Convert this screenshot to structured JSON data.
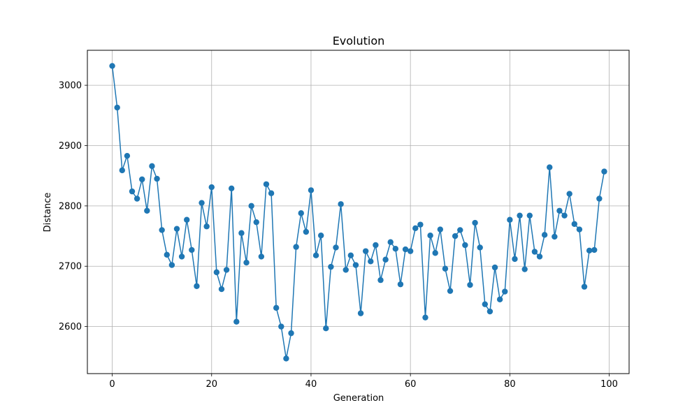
{
  "chart_data": {
    "type": "line",
    "title": "Evolution",
    "xlabel": "Generation",
    "ylabel": "Distance",
    "xlim": [
      -5,
      104
    ],
    "ylim": [
      2522,
      3058
    ],
    "xticks": [
      0,
      20,
      40,
      60,
      80,
      100
    ],
    "yticks": [
      2600,
      2700,
      2800,
      2900,
      3000
    ],
    "grid": true,
    "line_color": "#1f77b4",
    "marker": "circle",
    "series": [
      {
        "x": [
          0,
          1,
          2,
          3,
          4,
          5,
          6,
          7,
          8,
          9,
          10,
          11,
          12,
          13,
          14,
          15,
          16,
          17,
          18,
          19,
          20,
          21,
          22,
          23,
          24,
          25,
          26,
          27,
          28,
          29,
          30,
          31,
          32,
          33,
          34,
          35,
          36,
          37,
          38,
          39,
          40,
          41,
          42,
          43,
          44,
          45,
          46,
          47,
          48,
          49,
          50,
          51,
          52,
          53,
          54,
          55,
          56,
          57,
          58,
          59,
          60,
          61,
          62,
          63,
          64,
          65,
          66,
          67,
          68,
          69,
          70,
          71,
          72,
          73,
          74,
          75,
          76,
          77,
          78,
          79,
          80,
          81,
          82,
          83,
          84,
          85,
          86,
          87,
          88,
          89,
          90,
          91,
          92,
          93,
          94,
          95,
          96,
          97,
          98,
          99
        ],
        "values": [
          3032,
          2963,
          2859,
          2883,
          2824,
          2812,
          2844,
          2792,
          2866,
          2845,
          2760,
          2719,
          2702,
          2762,
          2716,
          2777,
          2727,
          2667,
          2805,
          2766,
          2831,
          2690,
          2662,
          2694,
          2829,
          2608,
          2755,
          2706,
          2800,
          2773,
          2716,
          2836,
          2821,
          2631,
          2600,
          2547,
          2589,
          2732,
          2788,
          2757,
          2826,
          2718,
          2751,
          2597,
          2699,
          2731,
          2803,
          2694,
          2718,
          2702,
          2622,
          2725,
          2708,
          2735,
          2677,
          2711,
          2740,
          2729,
          2670,
          2728,
          2725,
          2763,
          2769,
          2615,
          2751,
          2722,
          2761,
          2696,
          2659,
          2750,
          2760,
          2735,
          2669,
          2772,
          2731,
          2637,
          2625,
          2698,
          2645,
          2658,
          2777,
          2712,
          2784,
          2695,
          2784,
          2724,
          2716,
          2752,
          2864,
          2749,
          2792,
          2784,
          2820,
          2770,
          2761,
          2666,
          2726,
          2727,
          2812,
          2857
        ]
      }
    ]
  }
}
